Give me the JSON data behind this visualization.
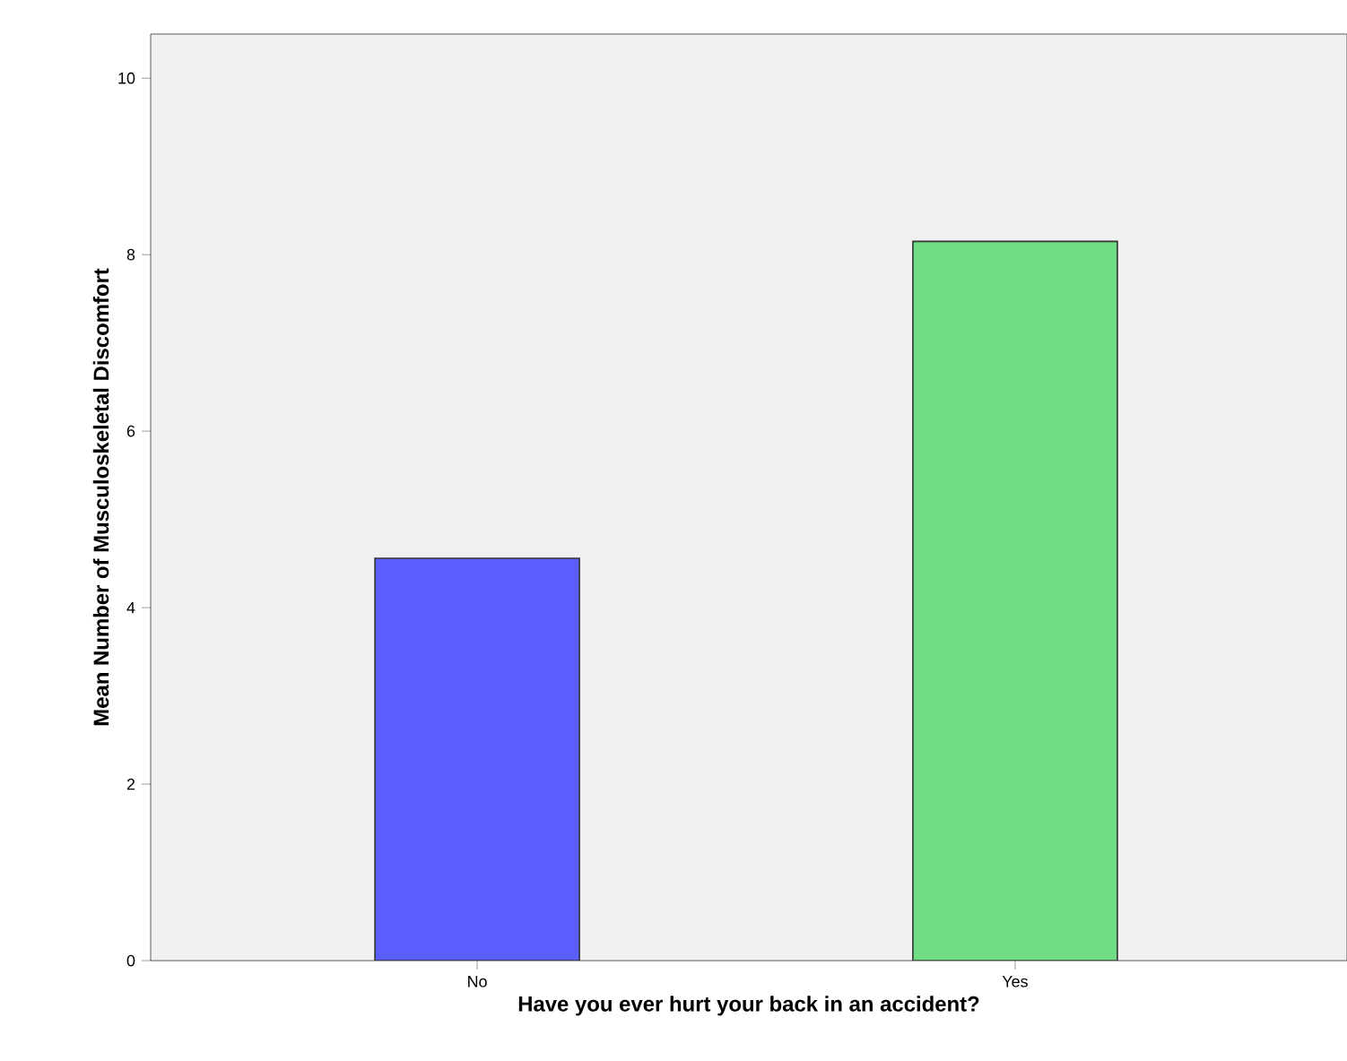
{
  "chart_data": {
    "type": "bar",
    "xlabel": "Have you ever hurt your back in an accident?",
    "ylabel": "Mean Number of Musculoskeletal Discomfort",
    "categories": [
      "No",
      "Yes"
    ],
    "values": [
      4.56,
      8.15
    ],
    "colors": [
      "#5c5fff",
      "#70dc84"
    ],
    "ylim": [
      0,
      10.5
    ],
    "yticks": [
      0,
      2,
      4,
      6,
      8,
      10
    ]
  }
}
